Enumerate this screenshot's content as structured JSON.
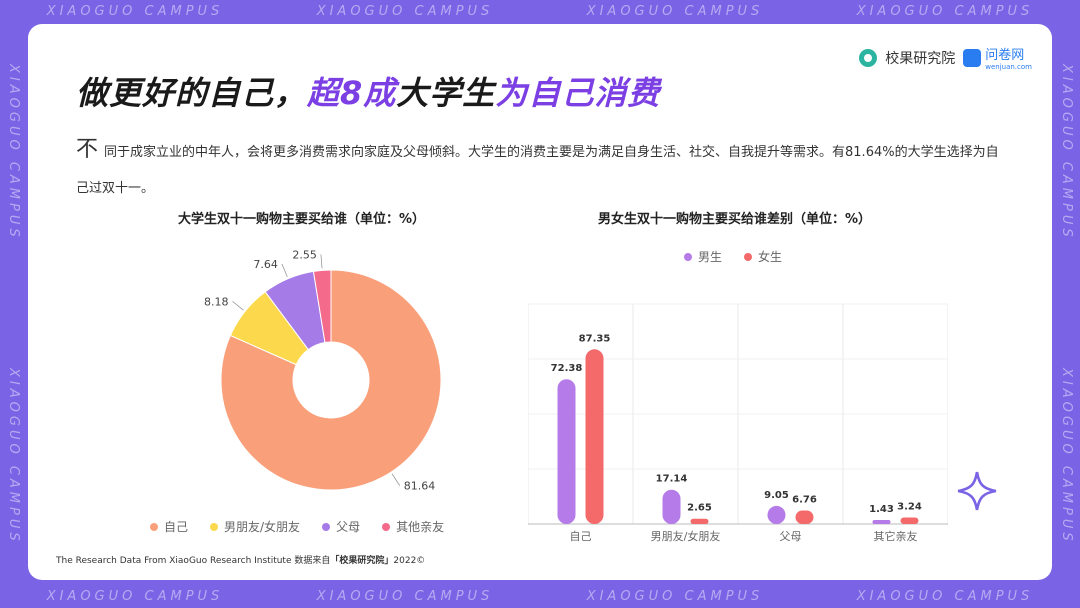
{
  "frame": {
    "text": "XIAOGUO CAMPUS"
  },
  "brand": {
    "name": "校果研究院",
    "partner": "问卷网",
    "partner_sub": "wenjuan.com"
  },
  "title": {
    "part1": "做更好的自己，",
    "highlight1": "超8成",
    "part2": "大学生",
    "highlight2": "为自己消费"
  },
  "description": {
    "lead": "不",
    "text": "同于成家立业的中年人，会将更多消费需求向家庭及父母倾斜。大学生的消费主要是为满足自身生活、社交、自我提升等需求。有81.64%的大学生选择为自己过双十一。"
  },
  "footer": {
    "prefix": "The Research Data From XiaoGuo Research Institute 数据来自",
    "source": "「校果研究院」",
    "suffix": "2022©"
  },
  "colors": {
    "self": "#f9a07a",
    "partner": "#fcd94c",
    "parents": "#a57be8",
    "other": "#f46a8a",
    "male": "#b57be8",
    "female": "#f46a6a",
    "accent": "#7b3fe4"
  },
  "chart_data": [
    {
      "type": "pie",
      "title": "大学生双十一购物主要买给谁（单位：%）",
      "categories": [
        "自己",
        "男朋友/女朋友",
        "父母",
        "其他亲友"
      ],
      "values": [
        81.64,
        8.18,
        7.64,
        2.55
      ],
      "legend": "bottom"
    },
    {
      "type": "bar",
      "title": "男女生双十一购物主要买给谁差别（单位：%）",
      "categories": [
        "自己",
        "男朋友/女朋友",
        "父母",
        "其它亲友"
      ],
      "series": [
        {
          "name": "男生",
          "values": [
            72.38,
            17.14,
            9.05,
            1.43
          ]
        },
        {
          "name": "女生",
          "values": [
            87.35,
            2.65,
            6.76,
            3.24
          ]
        }
      ],
      "ylim": [
        0,
        100
      ],
      "grid": true,
      "legend": "top"
    }
  ]
}
